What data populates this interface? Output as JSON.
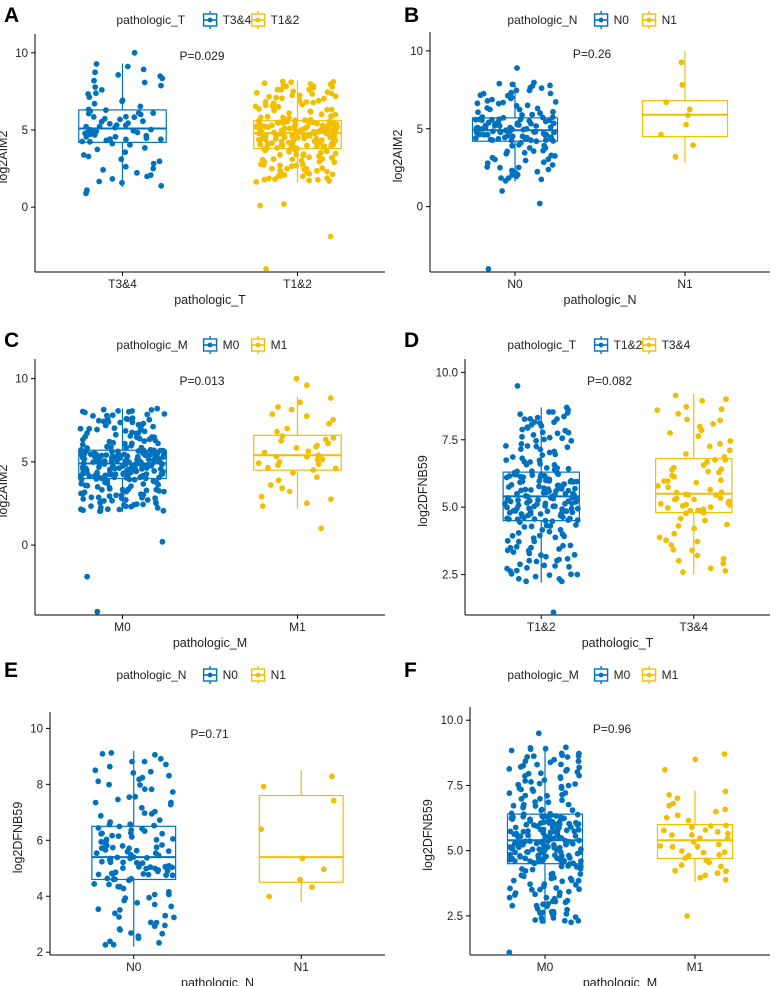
{
  "colors": {
    "blue": "#0072BD",
    "gold": "#F2BE00",
    "axis": "#000000",
    "text": "#222222"
  },
  "chart_data": [
    {
      "type": "boxplot",
      "panel_label": "A",
      "legend_title": "pathologic_T",
      "legend_placement": "top",
      "annotation": "P=0.029",
      "xlabel": "pathologic_T",
      "ylabel": "log2AIM2",
      "ylim": [
        -4.2,
        10.7
      ],
      "yticks": [
        0,
        5,
        10
      ],
      "groups": [
        {
          "name": "T3&4",
          "color": "#0072BD",
          "n": 80,
          "stats": {
            "min": 1.3,
            "q1": 4.2,
            "median": 5.1,
            "q3": 6.3,
            "max": 9.3
          },
          "outliers": [
            10.0,
            0.9,
            1.1
          ]
        },
        {
          "name": "T1&2",
          "color": "#F2BE00",
          "n": 220,
          "stats": {
            "min": 1.6,
            "q1": 3.8,
            "median": 4.8,
            "q3": 5.6,
            "max": 8.2
          },
          "outliers": [
            0.2,
            0.1,
            -1.9,
            -4.0
          ]
        }
      ]
    },
    {
      "type": "boxplot",
      "panel_label": "B",
      "legend_title": "pathologic_N",
      "legend_placement": "top",
      "annotation": "P=0.26",
      "xlabel": "pathologic_N",
      "ylabel": "log2AIM2",
      "ylim": [
        -4.2,
        10.7
      ],
      "yticks": [
        0,
        5,
        10
      ],
      "groups": [
        {
          "name": "N0",
          "color": "#0072BD",
          "n": 140,
          "stats": {
            "min": 1.6,
            "q1": 4.2,
            "median": 4.9,
            "q3": 5.7,
            "max": 8.0
          },
          "outliers": [
            8.9,
            1.0,
            0.2,
            -4.0
          ]
        },
        {
          "name": "N1",
          "color": "#F2BE00",
          "n": 9,
          "stats": {
            "min": 2.8,
            "q1": 4.5,
            "median": 5.9,
            "q3": 6.8,
            "max": 10.0
          },
          "outliers": []
        }
      ]
    },
    {
      "type": "boxplot",
      "panel_label": "C",
      "legend_title": "pathologic_M",
      "legend_placement": "top",
      "annotation": "P=0.013",
      "xlabel": "pathologic_M",
      "ylabel": "log2AIM2",
      "ylim": [
        -4.2,
        10.7
      ],
      "yticks": [
        0,
        5,
        10
      ],
      "groups": [
        {
          "name": "M0",
          "color": "#0072BD",
          "n": 260,
          "stats": {
            "min": 2.0,
            "q1": 4.0,
            "median": 4.9,
            "q3": 5.7,
            "max": 8.2
          },
          "outliers": [
            0.2,
            -1.9,
            -4.0
          ]
        },
        {
          "name": "M1",
          "color": "#F2BE00",
          "n": 42,
          "stats": {
            "min": 2.2,
            "q1": 4.5,
            "median": 5.4,
            "q3": 6.6,
            "max": 8.9
          },
          "outliers": [
            10.0,
            9.6,
            1.0
          ]
        }
      ]
    },
    {
      "type": "boxplot",
      "panel_label": "D",
      "legend_title": "pathologic_T",
      "legend_placement": "top",
      "annotation": "P=0.082",
      "xlabel": "pathologic_T",
      "ylabel": "log2DFNB59",
      "ylim": [
        1.0,
        10.2
      ],
      "yticks": [
        2.5,
        5.0,
        7.5,
        10.0
      ],
      "tick_decimals": 1,
      "groups": [
        {
          "name": "T1&2",
          "color": "#0072BD",
          "n": 220,
          "stats": {
            "min": 2.2,
            "q1": 4.5,
            "median": 5.4,
            "q3": 6.3,
            "max": 8.7
          },
          "outliers": [
            9.5,
            1.1
          ]
        },
        {
          "name": "T3&4",
          "color": "#F2BE00",
          "n": 80,
          "stats": {
            "min": 2.5,
            "q1": 4.8,
            "median": 5.5,
            "q3": 6.8,
            "max": 9.2
          },
          "outliers": []
        }
      ]
    },
    {
      "type": "boxplot",
      "panel_label": "E",
      "legend_title": "pathologic_N",
      "legend_placement": "top",
      "annotation": "P=0.71",
      "xlabel": "pathologic_N",
      "ylabel": "log2DFNB59",
      "ylim": [
        1.9,
        10.3
      ],
      "yticks": [
        2,
        4,
        6,
        8,
        10
      ],
      "groups": [
        {
          "name": "N0",
          "color": "#0072BD",
          "n": 140,
          "stats": {
            "min": 2.2,
            "q1": 4.6,
            "median": 5.4,
            "q3": 6.5,
            "max": 9.2
          },
          "outliers": []
        },
        {
          "name": "N1",
          "color": "#F2BE00",
          "n": 9,
          "stats": {
            "min": 3.8,
            "q1": 4.5,
            "median": 5.4,
            "q3": 7.6,
            "max": 8.5
          },
          "outliers": []
        }
      ]
    },
    {
      "type": "boxplot",
      "panel_label": "F",
      "legend_title": "pathologic_M",
      "legend_placement": "top",
      "annotation": "P=0.96",
      "xlabel": "pathologic_M",
      "ylabel": "log2DFNB59",
      "ylim": [
        1.0,
        10.2
      ],
      "yticks": [
        2.5,
        5.0,
        7.5,
        10.0
      ],
      "tick_decimals": 1,
      "groups": [
        {
          "name": "M0",
          "color": "#0072BD",
          "n": 260,
          "stats": {
            "min": 2.2,
            "q1": 4.5,
            "median": 5.4,
            "q3": 6.4,
            "max": 9.0
          },
          "outliers": [
            9.5,
            1.1
          ]
        },
        {
          "name": "M1",
          "color": "#F2BE00",
          "n": 42,
          "stats": {
            "min": 3.8,
            "q1": 4.7,
            "median": 5.4,
            "q3": 6.0,
            "max": 7.3
          },
          "outliers": [
            8.7,
            8.5,
            8.1,
            2.5
          ]
        }
      ]
    }
  ]
}
